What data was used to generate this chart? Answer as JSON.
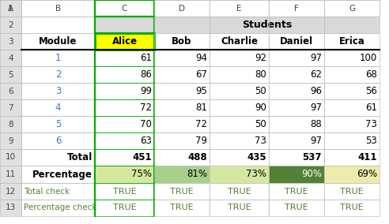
{
  "col_headers": [
    "A",
    "B",
    "C",
    "D",
    "E",
    "F",
    "G"
  ],
  "students_label": "Students",
  "student_names": [
    "Alice",
    "Bob",
    "Charlie",
    "Daniel",
    "Erica"
  ],
  "modules": [
    1,
    2,
    3,
    4,
    5,
    6
  ],
  "data": {
    "Alice": [
      61,
      86,
      99,
      72,
      70,
      63
    ],
    "Bob": [
      94,
      67,
      95,
      81,
      72,
      79
    ],
    "Charlie": [
      92,
      80,
      50,
      90,
      50,
      73
    ],
    "Daniel": [
      97,
      62,
      96,
      97,
      88,
      97
    ],
    "Erica": [
      100,
      68,
      56,
      61,
      73,
      53
    ]
  },
  "totals": {
    "Alice": 451,
    "Bob": 488,
    "Charlie": 435,
    "Daniel": 537,
    "Erica": 411
  },
  "percentages": {
    "Alice": "75%",
    "Bob": "81%",
    "Charlie": "73%",
    "Daniel": "90%",
    "Erica": "69%"
  },
  "pct_bg_colors": {
    "Alice": "#d6e8a0",
    "Bob": "#a8d08d",
    "Charlie": "#d6e8a0",
    "Daniel": "#538135",
    "Erica": "#eeecaa"
  },
  "pct_text_colors": {
    "Alice": "#000000",
    "Bob": "#000000",
    "Charlie": "#000000",
    "Daniel": "#ffffff",
    "Erica": "#000000"
  },
  "alice_header_bg": "#ffff00",
  "alice_header_border": "#00aa00",
  "students_bg": "#d9d9d9",
  "check_color": "#538135",
  "true_text_color": "#538135",
  "grid_color": "#c0c0c0",
  "col_header_bg": "#e0e0e0",
  "row_header_bg": "#e0e0e0",
  "figsize": [
    4.92,
    2.84
  ],
  "dpi": 100
}
